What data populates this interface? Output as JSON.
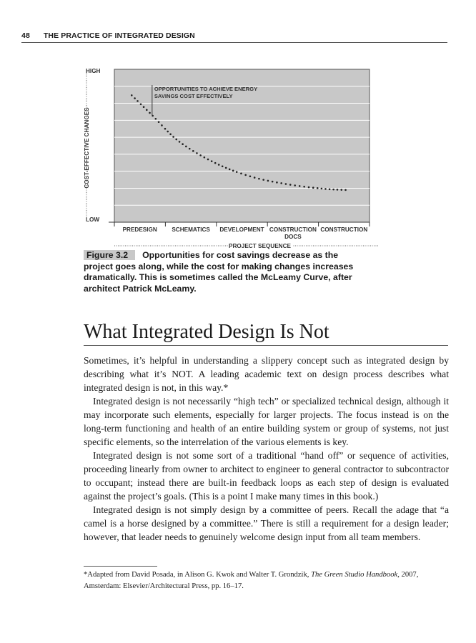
{
  "header": {
    "page_number": "48",
    "running_title": "THE PRACTICE OF INTEGRATED DESIGN"
  },
  "figure": {
    "label": "Figure 3.2",
    "caption": "Opportunities for cost savings decrease as the project goes along, while the cost for making changes increases dramatically. This is sometimes called the McLeamy Curve, after architect Patrick McLeamy."
  },
  "chart_data": {
    "type": "line",
    "style": "dotted",
    "ylabel": "COST-EFFECTIVE CHANGES",
    "xlabel": "PROJECT SEQUENCE",
    "y_tick_labels": [
      "LOW",
      "HIGH"
    ],
    "ylim": [
      0,
      1
    ],
    "categories": [
      "PREDESIGN",
      "SCHEMATICS",
      "DEVELOPMENT",
      "CONSTRUCTION DOCS",
      "CONSTRUCTION"
    ],
    "xlim": [
      0,
      5
    ],
    "grid": true,
    "background": "#c8c8c8",
    "annotation": {
      "text_lines": [
        "OPPORTUNITIES TO ACHIEVE ENERGY",
        "SAVINGS COST EFFECTIVELY"
      ],
      "x": 0.74,
      "y": 0.7
    },
    "series": [
      {
        "x": [
          0.34,
          0.74,
          1.26,
          1.96,
          2.66,
          3.36,
          4.06,
          4.59
        ],
        "y": [
          0.83,
          0.7,
          0.53,
          0.39,
          0.3,
          0.25,
          0.22,
          0.21
        ]
      }
    ]
  },
  "section": {
    "title": "What Integrated Design Is Not"
  },
  "paragraphs": [
    "Sometimes, it’s helpful in understanding a slippery concept such as integrated design by describing what it’s NOT. A leading academic text on design process describes what integrated design is not, in this way.*",
    "Integrated design is not necessarily “high tech” or specialized technical design, although it may incorporate such elements, especially for larger projects. The focus instead is on the long-term functioning and health of an entire building system or group of systems, not just specific elements, so the interrelation of the various elements is key.",
    "Integrated design is not some sort of a traditional “hand off” or sequence of activities, proceeding linearly from owner to architect to engineer to general contractor to subcontractor to occupant; instead there are built-in feedback loops as each step of design is evaluated against the project’s goals. (This is a point I make many times in this book.)",
    "Integrated design is not simply design by a committee of peers. Recall the adage that “a camel is a horse designed by a committee.” There is still a requirement for a design leader; however, that leader needs to genuinely welcome design input from all team members."
  ],
  "footnote": {
    "before": "*Adapted from David Posada, in Alison G. Kwok and Walter T. Grondzik, ",
    "title": "The Green Studio Handbook",
    "after": ", 2007, Amsterdam: Elsevier/Architectural Press, pp. 16–17."
  }
}
